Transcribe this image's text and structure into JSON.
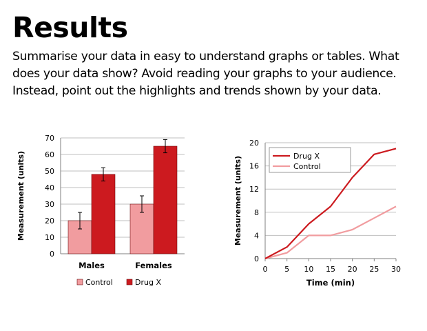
{
  "slide": {
    "title": "Results",
    "body": "Summarise your data in easy to understand graphs or tables. What does your data show? Avoid reading your graphs to your audience. Instead, point out the highlights and trends shown by your data."
  },
  "chart_data": [
    {
      "type": "bar",
      "categories": [
        "Males",
        "Females"
      ],
      "series": [
        {
          "name": "Control",
          "values": [
            20,
            30
          ],
          "error": [
            5,
            5
          ],
          "color": "#f19c9f"
        },
        {
          "name": "Drug X",
          "values": [
            48,
            65
          ],
          "error": [
            4,
            4
          ],
          "color": "#cc1a1f"
        }
      ],
      "ylabel": "Measurement (units)",
      "xlabel": "",
      "ylim": [
        0,
        70
      ],
      "yticks": [
        0,
        10,
        20,
        30,
        40,
        50,
        60,
        70
      ],
      "grid": true,
      "legend": "bottom"
    },
    {
      "type": "line",
      "x": [
        0,
        5,
        10,
        15,
        20,
        25,
        30
      ],
      "series": [
        {
          "name": "Drug X",
          "values": [
            0,
            2,
            6,
            9,
            14,
            18,
            19
          ],
          "color": "#cc1a1f"
        },
        {
          "name": "Control",
          "values": [
            0,
            1,
            4,
            4,
            5,
            7,
            9
          ],
          "color": "#f19c9f"
        }
      ],
      "xlabel": "Time (min)",
      "ylabel": "Measurement (units)",
      "xlim": [
        0,
        30
      ],
      "ylim": [
        0,
        20
      ],
      "xticks": [
        0,
        5,
        10,
        15,
        20,
        25,
        30
      ],
      "yticks": [
        0,
        4,
        8,
        12,
        16,
        20
      ],
      "grid": true,
      "legend": "top-left"
    }
  ]
}
